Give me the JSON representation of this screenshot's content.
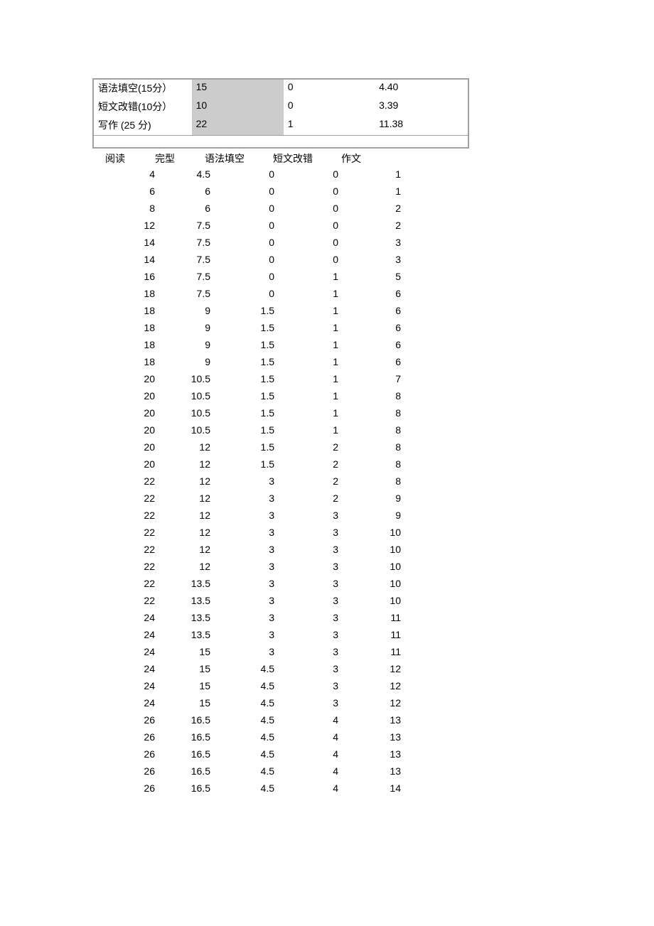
{
  "summary": {
    "rows": [
      {
        "label": "语法填空(15分）",
        "v1": "15",
        "v2": "0",
        "v3": "4.40"
      },
      {
        "label": "短文改错(10分）",
        "v1": "10",
        "v2": "0",
        "v3": "3.39"
      },
      {
        "label": "写作 (25 分)",
        "v1": "22",
        "v2": "1",
        "v3": "11.38"
      }
    ]
  },
  "data": {
    "headers": [
      "阅读",
      "完型",
      "语法填空",
      "短文改错",
      "作文"
    ],
    "rows": [
      [
        "4",
        "4.5",
        "0",
        "0",
        "1"
      ],
      [
        "6",
        "6",
        "0",
        "0",
        "1"
      ],
      [
        "8",
        "6",
        "0",
        "0",
        "2"
      ],
      [
        "12",
        "7.5",
        "0",
        "0",
        "2"
      ],
      [
        "14",
        "7.5",
        "0",
        "0",
        "3"
      ],
      [
        "14",
        "7.5",
        "0",
        "0",
        "3"
      ],
      [
        "16",
        "7.5",
        "0",
        "1",
        "5"
      ],
      [
        "18",
        "7.5",
        "0",
        "1",
        "6"
      ],
      [
        "18",
        "9",
        "1.5",
        "1",
        "6"
      ],
      [
        "18",
        "9",
        "1.5",
        "1",
        "6"
      ],
      [
        "18",
        "9",
        "1.5",
        "1",
        "6"
      ],
      [
        "18",
        "9",
        "1.5",
        "1",
        "6"
      ],
      [
        "20",
        "10.5",
        "1.5",
        "1",
        "7"
      ],
      [
        "20",
        "10.5",
        "1.5",
        "1",
        "8"
      ],
      [
        "20",
        "10.5",
        "1.5",
        "1",
        "8"
      ],
      [
        "20",
        "10.5",
        "1.5",
        "1",
        "8"
      ],
      [
        "20",
        "12",
        "1.5",
        "2",
        "8"
      ],
      [
        "20",
        "12",
        "1.5",
        "2",
        "8"
      ],
      [
        "22",
        "12",
        "3",
        "2",
        "8"
      ],
      [
        "22",
        "12",
        "3",
        "2",
        "9"
      ],
      [
        "22",
        "12",
        "3",
        "3",
        "9"
      ],
      [
        "22",
        "12",
        "3",
        "3",
        "10"
      ],
      [
        "22",
        "12",
        "3",
        "3",
        "10"
      ],
      [
        "22",
        "12",
        "3",
        "3",
        "10"
      ],
      [
        "22",
        "13.5",
        "3",
        "3",
        "10"
      ],
      [
        "22",
        "13.5",
        "3",
        "3",
        "10"
      ],
      [
        "24",
        "13.5",
        "3",
        "3",
        "11"
      ],
      [
        "24",
        "13.5",
        "3",
        "3",
        "11"
      ],
      [
        "24",
        "15",
        "3",
        "3",
        "11"
      ],
      [
        "24",
        "15",
        "4.5",
        "3",
        "12"
      ],
      [
        "24",
        "15",
        "4.5",
        "3",
        "12"
      ],
      [
        "24",
        "15",
        "4.5",
        "3",
        "12"
      ],
      [
        "26",
        "16.5",
        "4.5",
        "4",
        "13"
      ],
      [
        "26",
        "16.5",
        "4.5",
        "4",
        "13"
      ],
      [
        "26",
        "16.5",
        "4.5",
        "4",
        "13"
      ],
      [
        "26",
        "16.5",
        "4.5",
        "4",
        "13"
      ],
      [
        "26",
        "16.5",
        "4.5",
        "4",
        "14"
      ]
    ]
  }
}
